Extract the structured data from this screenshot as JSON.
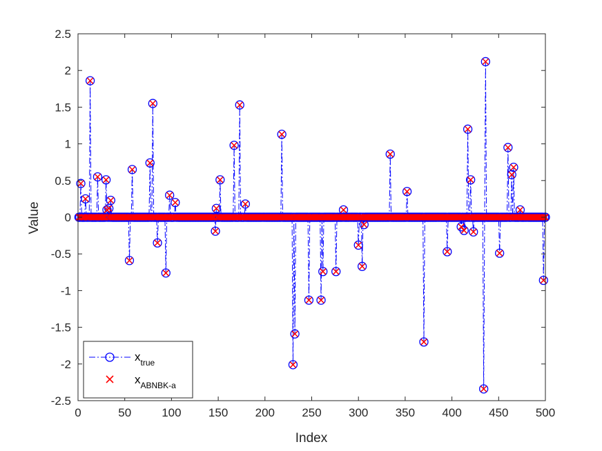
{
  "chart_data": {
    "type": "scatter",
    "title": "",
    "xlabel": "Index",
    "ylabel": "Value",
    "xlim": [
      0,
      500
    ],
    "ylim": [
      -2.5,
      2.5
    ],
    "x_ticks": [
      "0",
      "50",
      "100",
      "150",
      "200",
      "250",
      "300",
      "350",
      "400",
      "450",
      "500"
    ],
    "y_ticks": [
      "2.5",
      "2",
      "1.5",
      "1",
      "0.5",
      "0",
      "-0.5",
      "-1",
      "-1.5",
      "-2",
      "-2.5"
    ],
    "grid": false,
    "legend_position": "bottom-left",
    "n_points": 500,
    "series": [
      {
        "name": "x",
        "name_sub": "true",
        "style": "blue dash-dot stem with circle markers",
        "color": "#0000ff",
        "marker": "circle",
        "nonzero": [
          [
            3,
            0.46
          ],
          [
            8,
            0.25
          ],
          [
            13,
            1.86
          ],
          [
            21,
            0.55
          ],
          [
            30,
            0.51
          ],
          [
            31,
            0.1
          ],
          [
            33,
            0.12
          ],
          [
            35,
            0.23
          ],
          [
            55,
            -0.59
          ],
          [
            58,
            0.65
          ],
          [
            77,
            0.74
          ],
          [
            80,
            1.55
          ],
          [
            85,
            -0.35
          ],
          [
            94,
            -0.76
          ],
          [
            98,
            0.3
          ],
          [
            104,
            0.2
          ],
          [
            147,
            -0.19
          ],
          [
            148,
            0.12
          ],
          [
            152,
            0.51
          ],
          [
            167,
            0.98
          ],
          [
            173,
            1.53
          ],
          [
            179,
            0.18
          ],
          [
            218,
            1.13
          ],
          [
            230,
            -2.01
          ],
          [
            232,
            -1.59
          ],
          [
            247,
            -1.13
          ],
          [
            260,
            -1.13
          ],
          [
            262,
            -0.74
          ],
          [
            276,
            -0.74
          ],
          [
            284,
            0.1
          ],
          [
            300,
            -0.38
          ],
          [
            304,
            -0.67
          ],
          [
            306,
            -0.1
          ],
          [
            334,
            0.86
          ],
          [
            352,
            0.35
          ],
          [
            370,
            -1.7
          ],
          [
            395,
            -0.47
          ],
          [
            410,
            -0.13
          ],
          [
            413,
            -0.18
          ],
          [
            417,
            1.2
          ],
          [
            420,
            0.51
          ],
          [
            423,
            -0.2
          ],
          [
            434,
            -2.34
          ],
          [
            436,
            2.12
          ],
          [
            451,
            -0.49
          ],
          [
            460,
            0.95
          ],
          [
            464,
            0.58
          ],
          [
            466,
            0.68
          ],
          [
            473,
            0.1
          ],
          [
            498,
            -0.86
          ]
        ]
      },
      {
        "name": "x",
        "name_sub": "ABNBK-a",
        "style": "red x markers",
        "color": "#ff0000",
        "marker": "x",
        "nonzero": "identical to x_true"
      }
    ]
  }
}
